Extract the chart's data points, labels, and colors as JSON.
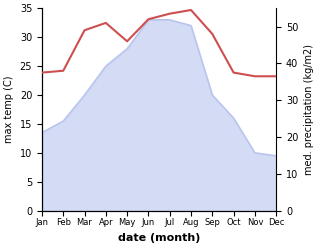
{
  "months": [
    "Jan",
    "Feb",
    "Mar",
    "Apr",
    "May",
    "Jun",
    "Jul",
    "Aug",
    "Sep",
    "Oct",
    "Nov",
    "Dec"
  ],
  "month_x": [
    1,
    2,
    3,
    4,
    5,
    6,
    7,
    8,
    9,
    10,
    11,
    12
  ],
  "temp_values": [
    13.5,
    15.5,
    20.0,
    25.0,
    28.0,
    33.0,
    33.0,
    32.0,
    20.0,
    16.0,
    10.0,
    9.5
  ],
  "precip_values": [
    37.5,
    38.0,
    49.0,
    51.0,
    46.0,
    52.0,
    53.5,
    54.5,
    48.0,
    37.5,
    36.5,
    36.5
  ],
  "temp_ylim": [
    0,
    35
  ],
  "precip_ylim": [
    0,
    55
  ],
  "temp_fill_color": "#b8c4ee",
  "temp_fill_alpha": 0.6,
  "precip_color": "#cd4f4f",
  "xlabel": "date (month)",
  "ylabel_left": "max temp (C)",
  "ylabel_right": "med. precipitation (kg/m2)",
  "temp_yticks": [
    0,
    5,
    10,
    15,
    20,
    25,
    30,
    35
  ],
  "precip_yticks": [
    0,
    10,
    20,
    30,
    40,
    50
  ],
  "figsize": [
    3.18,
    2.47
  ],
  "dpi": 100
}
